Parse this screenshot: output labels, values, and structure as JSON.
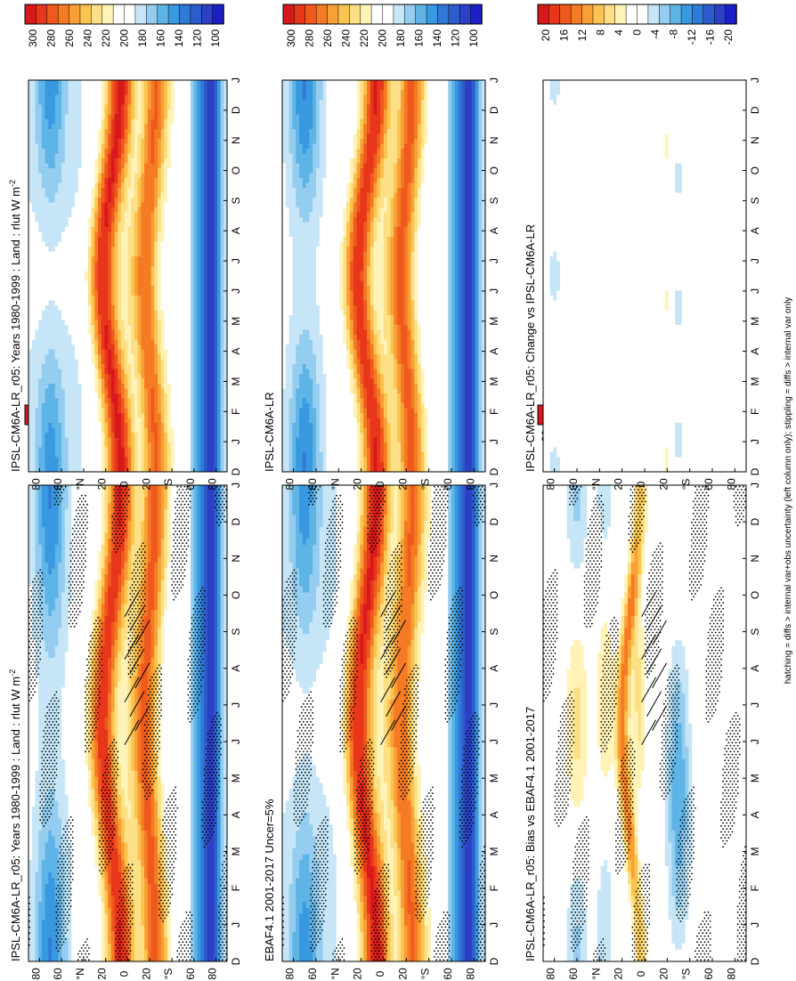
{
  "chart_data": [
    {
      "type": "heatmap",
      "title": "IPSL-CM6A-LR_r05: Years 1980-1999 : Land : rlut W m",
      "title_sup": "-2",
      "ylabel": "",
      "y_ticks": [
        "80",
        "60",
        "°N",
        "20",
        "0",
        "20",
        "°S",
        "60",
        "80"
      ],
      "x_ticks": [
        "D",
        "J",
        "F",
        "M",
        "A",
        "M",
        "J",
        "J",
        "A",
        "S",
        "O",
        "N",
        "D",
        "J"
      ],
      "zrange": [
        100,
        300
      ],
      "stippling": true,
      "hatching": true,
      "bands": {
        "tropics_peak": 300,
        "subtropics": 240,
        "midlat": 200,
        "polar_south": 130
      }
    },
    {
      "type": "heatmap",
      "title": "IPSL-CM6A-LR_r05: Years 1980-1999 : Land : rlut W m",
      "title_sup": "-2",
      "y_ticks": [
        "80",
        "60",
        "°N",
        "20",
        "0",
        "20",
        "°S",
        "60",
        "80"
      ],
      "x_ticks": [
        "D",
        "J",
        "F",
        "M",
        "A",
        "M",
        "J",
        "J",
        "A",
        "S",
        "O",
        "N",
        "D",
        "J"
      ],
      "zrange": [
        100,
        300
      ],
      "stippling": false,
      "hatching": false
    },
    {
      "type": "heatmap",
      "title": "EBAF4.1 2001-2017 Uncer=5%",
      "y_ticks": [
        "80",
        "60",
        "°N",
        "20",
        "0",
        "20",
        "°S",
        "60",
        "80"
      ],
      "x_ticks": [
        "D",
        "J",
        "F",
        "M",
        "A",
        "M",
        "J",
        "J",
        "A",
        "S",
        "O",
        "N",
        "D",
        "J"
      ],
      "zrange": [
        100,
        300
      ],
      "stippling": true,
      "hatching": true
    },
    {
      "type": "heatmap",
      "title": "IPSL-CM6A-LR",
      "y_ticks": [
        "80",
        "60",
        "°N",
        "20",
        "0",
        "20",
        "°S",
        "60",
        "80"
      ],
      "x_ticks": [
        "D",
        "J",
        "F",
        "M",
        "A",
        "M",
        "J",
        "J",
        "A",
        "S",
        "O",
        "N",
        "D",
        "J"
      ],
      "zrange": [
        100,
        300
      ],
      "stippling": false,
      "hatching": false
    },
    {
      "type": "heatmap",
      "title": "IPSL-CM6A-LR_r05: Bias vs EBAF4.1 2001-2017",
      "y_ticks": [
        "80",
        "60",
        "°N",
        "20",
        "0",
        "20",
        "°S",
        "60",
        "80"
      ],
      "x_ticks": [
        "D",
        "J",
        "F",
        "M",
        "A",
        "M",
        "J",
        "J",
        "A",
        "S",
        "O",
        "N",
        "D",
        "J"
      ],
      "zrange": [
        -22,
        22
      ],
      "stippling": true,
      "hatching": true
    },
    {
      "type": "heatmap",
      "title": "IPSL-CM6A-LR_r05: Change vs IPSL-CM6A-LR",
      "y_ticks": [
        "80",
        "60",
        "°N",
        "20",
        "0",
        "20",
        "°S",
        "60",
        "80"
      ],
      "x_ticks": [
        "D",
        "J",
        "F",
        "M",
        "A",
        "M",
        "J",
        "J",
        "A",
        "S",
        "O",
        "N",
        "D",
        "J"
      ],
      "zrange": [
        -22,
        22
      ],
      "stippling": false,
      "hatching": false
    }
  ],
  "colorbars": {
    "abs": {
      "labels": [
        "300",
        "280",
        "260",
        "240",
        "220",
        "200",
        "180",
        "160",
        "140",
        "120",
        "100"
      ],
      "colors": [
        "#d7191c",
        "#e8361a",
        "#f0591d",
        "#f47a24",
        "#f8a035",
        "#fbc34f",
        "#fde085",
        "#fff3b8",
        "#ffffff",
        "#ffffff",
        "#c6e6f7",
        "#94cdef",
        "#5fb4e6",
        "#3898e0",
        "#2f7ad6",
        "#2d5ccc",
        "#2c40c6",
        "#1e1ec8"
      ]
    },
    "diff": {
      "labels": [
        "20",
        "16",
        "12",
        "8",
        "4",
        "0",
        "-4",
        "-8",
        "-12",
        "-16",
        "-20"
      ],
      "colors": [
        "#d7191c",
        "#e8361a",
        "#f0591d",
        "#f47a24",
        "#f8a035",
        "#fbc34f",
        "#fde085",
        "#fff3b8",
        "#ffffff",
        "#ffffff",
        "#c6e6f7",
        "#94cdef",
        "#5fb4e6",
        "#3898e0",
        "#2f7ad6",
        "#2d5ccc",
        "#2c40c6",
        "#1e1ec8"
      ]
    }
  },
  "footer": "hatching = diffs > internal var+obs uncertainty (left column only); stippling = diffs > internal var only"
}
